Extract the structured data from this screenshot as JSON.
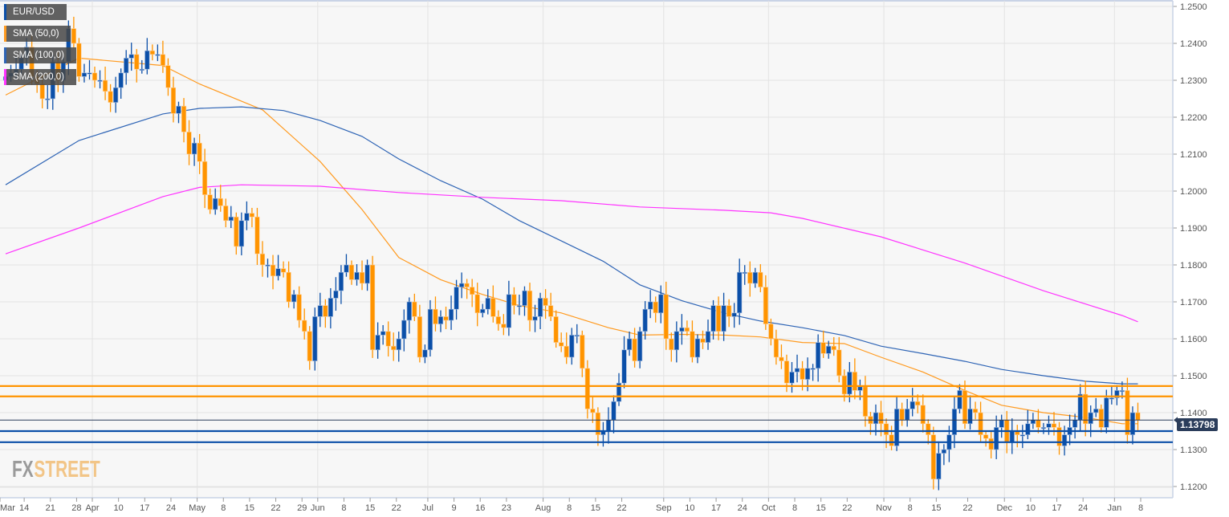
{
  "legend": {
    "symbol": "EUR/USD",
    "sma50": "SMA (50,0)",
    "sma100": "SMA (100,0)",
    "sma200": "SMA (200,0)"
  },
  "logo": {
    "fx": "FX",
    "street": "STREET"
  },
  "last_price": "1.13798",
  "colors": {
    "bull": "#0b4fa8",
    "bear": "#ff9400",
    "sma50": "#ff9a1f",
    "sma100": "#2e64b5",
    "sma200": "#ff33ff",
    "bg": "#f7f7f7",
    "grid": "#e3e3e3",
    "support": "#0b4fa8",
    "resistance": "#ff9400",
    "last": "#2b3d5b"
  },
  "chart_data": {
    "type": "candlestick",
    "title": "EUR/USD",
    "start_date": "2018-03-08",
    "ylim": [
      1.117,
      1.252
    ],
    "y_ticks": [
      "1.2500",
      "1.2400",
      "1.2300",
      "1.2200",
      "1.2100",
      "1.2000",
      "1.1900",
      "1.1800",
      "1.1700",
      "1.1600",
      "1.1500",
      "1.1400",
      "1.1300",
      "1.1200"
    ],
    "x_ticks": [
      {
        "label": "Mar",
        "i": -1
      },
      {
        "label": "14",
        "i": 4
      },
      {
        "label": "21",
        "i": 9
      },
      {
        "label": "28",
        "i": 14
      },
      {
        "label": "Apr",
        "i": 17
      },
      {
        "label": "10",
        "i": 22
      },
      {
        "label": "17",
        "i": 27
      },
      {
        "label": "24",
        "i": 32
      },
      {
        "label": "May",
        "i": 37
      },
      {
        "label": "8",
        "i": 42
      },
      {
        "label": "15",
        "i": 47
      },
      {
        "label": "22",
        "i": 52
      },
      {
        "label": "29",
        "i": 57
      },
      {
        "label": "Jun",
        "i": 60
      },
      {
        "label": "8",
        "i": 65
      },
      {
        "label": "15",
        "i": 70
      },
      {
        "label": "22",
        "i": 75
      },
      {
        "label": "Jul",
        "i": 81
      },
      {
        "label": "9",
        "i": 86
      },
      {
        "label": "16",
        "i": 91
      },
      {
        "label": "23",
        "i": 96
      },
      {
        "label": "Aug",
        "i": 103
      },
      {
        "label": "8",
        "i": 108
      },
      {
        "label": "15",
        "i": 113
      },
      {
        "label": "22",
        "i": 118
      },
      {
        "label": "Sep",
        "i": 126
      },
      {
        "label": "10",
        "i": 131
      },
      {
        "label": "17",
        "i": 136
      },
      {
        "label": "24",
        "i": 141
      },
      {
        "label": "Oct",
        "i": 146
      },
      {
        "label": "8",
        "i": 151
      },
      {
        "label": "15",
        "i": 156
      },
      {
        "label": "22",
        "i": 161
      },
      {
        "label": "Nov",
        "i": 168
      },
      {
        "label": "8",
        "i": 173
      },
      {
        "label": "15",
        "i": 178
      },
      {
        "label": "22",
        "i": 184
      },
      {
        "label": "Dec",
        "i": 191
      },
      {
        "label": "10",
        "i": 196
      },
      {
        "label": "17",
        "i": 201
      },
      {
        "label": "24",
        "i": 206
      },
      {
        "label": "Jan",
        "i": 212
      },
      {
        "label": "8",
        "i": 217
      }
    ],
    "month_starts": [
      17,
      37,
      60,
      81,
      103,
      126,
      146,
      168,
      191,
      212
    ],
    "closes": [
      1.231,
      1.232,
      1.233,
      1.236,
      1.239,
      1.231,
      1.229,
      1.225,
      1.225,
      1.235,
      1.23,
      1.235,
      1.244,
      1.24,
      1.231,
      1.232,
      1.232,
      1.23,
      1.23,
      1.227,
      1.224,
      1.228,
      1.232,
      1.236,
      1.237,
      1.233,
      1.233,
      1.238,
      1.237,
      1.237,
      1.234,
      1.228,
      1.221,
      1.223,
      1.216,
      1.21,
      1.213,
      1.208,
      1.199,
      1.195,
      1.198,
      1.196,
      1.192,
      1.193,
      1.185,
      1.192,
      1.194,
      1.193,
      1.183,
      1.18,
      1.18,
      1.177,
      1.179,
      1.178,
      1.17,
      1.172,
      1.165,
      1.162,
      1.154,
      1.166,
      1.169,
      1.166,
      1.171,
      1.173,
      1.178,
      1.18,
      1.176,
      1.178,
      1.175,
      1.18,
      1.157,
      1.161,
      1.162,
      1.158,
      1.157,
      1.16,
      1.165,
      1.17,
      1.166,
      1.155,
      1.157,
      1.168,
      1.164,
      1.166,
      1.165,
      1.168,
      1.174,
      1.175,
      1.174,
      1.172,
      1.167,
      1.168,
      1.171,
      1.166,
      1.164,
      1.163,
      1.172,
      1.169,
      1.169,
      1.173,
      1.165,
      1.166,
      1.171,
      1.169,
      1.166,
      1.159,
      1.158,
      1.155,
      1.161,
      1.161,
      1.152,
      1.141,
      1.14,
      1.134,
      1.135,
      1.138,
      1.143,
      1.148,
      1.157,
      1.16,
      1.154,
      1.162,
      1.168,
      1.17,
      1.167,
      1.172,
      1.16,
      1.157,
      1.162,
      1.163,
      1.162,
      1.155,
      1.16,
      1.159,
      1.162,
      1.169,
      1.162,
      1.169,
      1.166,
      1.167,
      1.178,
      1.178,
      1.175,
      1.178,
      1.174,
      1.164,
      1.16,
      1.155,
      1.154,
      1.148,
      1.151,
      1.152,
      1.149,
      1.152,
      1.152,
      1.159,
      1.156,
      1.158,
      1.157,
      1.15,
      1.145,
      1.151,
      1.146,
      1.147,
      1.139,
      1.137,
      1.14,
      1.137,
      1.134,
      1.131,
      1.141,
      1.138,
      1.141,
      1.143,
      1.142,
      1.137,
      1.134,
      1.122,
      1.129,
      1.13,
      1.134,
      1.141,
      1.146,
      1.137,
      1.141,
      1.14,
      1.134,
      1.133,
      1.13,
      1.136,
      1.138,
      1.132,
      1.135,
      1.134,
      1.134,
      1.137,
      1.138,
      1.136,
      1.136,
      1.137,
      1.136,
      1.131,
      1.134,
      1.136,
      1.138,
      1.145,
      1.137,
      1.14,
      1.141,
      1.136,
      1.144,
      1.144,
      1.146,
      1.146,
      1.134,
      1.14,
      1.13798
    ],
    "series": [
      {
        "name": "SMA (50,0)",
        "points": [
          [
            0,
            1.226
          ],
          [
            14,
            1.236
          ],
          [
            30,
            1.234
          ],
          [
            37,
            1.229
          ],
          [
            49,
            1.222
          ],
          [
            60,
            1.208
          ],
          [
            68,
            1.195
          ],
          [
            75,
            1.182
          ],
          [
            83,
            1.176
          ],
          [
            91,
            1.172
          ],
          [
            98,
            1.169
          ],
          [
            106,
            1.167
          ],
          [
            115,
            1.163
          ],
          [
            121,
            1.161
          ],
          [
            129,
            1.1612
          ],
          [
            137,
            1.161
          ],
          [
            144,
            1.1605
          ],
          [
            152,
            1.159
          ],
          [
            160,
            1.1587
          ],
          [
            167,
            1.155
          ],
          [
            175,
            1.151
          ],
          [
            183,
            1.146
          ],
          [
            190,
            1.142
          ],
          [
            198,
            1.14
          ],
          [
            206,
            1.1387
          ],
          [
            213,
            1.137
          ],
          [
            216,
            1.137
          ]
        ]
      },
      {
        "name": "SMA (100,0)",
        "points": [
          [
            0,
            1.2017
          ],
          [
            14,
            1.2137
          ],
          [
            30,
            1.2209
          ],
          [
            37,
            1.2224
          ],
          [
            45,
            1.2228
          ],
          [
            53,
            1.2218
          ],
          [
            60,
            1.2191
          ],
          [
            68,
            1.2148
          ],
          [
            75,
            1.2087
          ],
          [
            83,
            1.2028
          ],
          [
            91,
            1.1978
          ],
          [
            98,
            1.192
          ],
          [
            106,
            1.1865
          ],
          [
            114,
            1.181
          ],
          [
            121,
            1.1746
          ],
          [
            129,
            1.1703
          ],
          [
            137,
            1.167
          ],
          [
            144,
            1.1648
          ],
          [
            152,
            1.163
          ],
          [
            160,
            1.1609
          ],
          [
            167,
            1.158
          ],
          [
            175,
            1.156
          ],
          [
            183,
            1.1539
          ],
          [
            190,
            1.1517
          ],
          [
            198,
            1.15
          ],
          [
            206,
            1.1485
          ],
          [
            213,
            1.1478
          ],
          [
            216,
            1.1478
          ]
        ]
      },
      {
        "name": "SMA (200,0)",
        "points": [
          [
            0,
            1.183
          ],
          [
            14,
            1.19
          ],
          [
            30,
            1.1985
          ],
          [
            37,
            1.201
          ],
          [
            45,
            1.2017
          ],
          [
            60,
            1.2013
          ],
          [
            75,
            1.1996
          ],
          [
            91,
            1.1983
          ],
          [
            106,
            1.1974
          ],
          [
            121,
            1.1957
          ],
          [
            137,
            1.1948
          ],
          [
            146,
            1.1941
          ],
          [
            152,
            1.1926
          ],
          [
            167,
            1.1876
          ],
          [
            183,
            1.1805
          ],
          [
            198,
            1.173
          ],
          [
            213,
            1.1663
          ],
          [
            216,
            1.1646
          ]
        ]
      }
    ],
    "horizontal_levels": [
      {
        "value": 1.1472,
        "kind": "resistance"
      },
      {
        "value": 1.1444,
        "kind": "resistance"
      },
      {
        "value": 1.13798,
        "kind": "last"
      },
      {
        "value": 1.135,
        "kind": "support"
      },
      {
        "value": 1.132,
        "kind": "support"
      }
    ]
  }
}
